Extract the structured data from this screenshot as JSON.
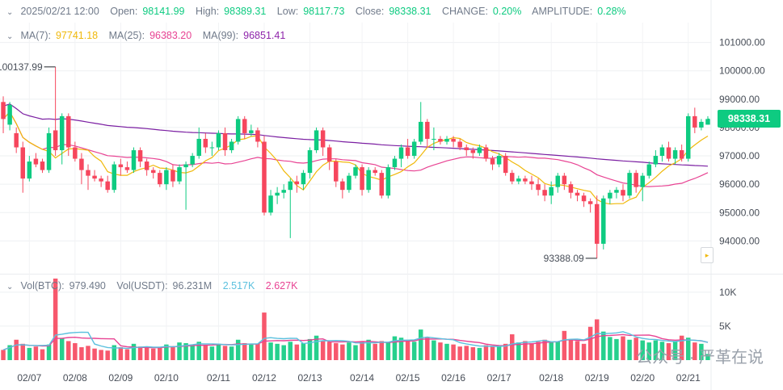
{
  "header": {
    "datetime": "2025/02/21 12:00",
    "open_label": "Open:",
    "open": "98141.99",
    "high_label": "High:",
    "high": "98389.31",
    "low_label": "Low:",
    "low": "98117.73",
    "close_label": "Close:",
    "close": "98338.31",
    "change_label": "CHANGE:",
    "change": "0.20%",
    "amplitude_label": "AMPLITUDE:",
    "amplitude": "0.28%"
  },
  "ma": {
    "ma7_label": "MA(7):",
    "ma7": "97741.18",
    "ma25_label": "MA(25):",
    "ma25": "96383.20",
    "ma99_label": "MA(99):",
    "ma99": "96851.41"
  },
  "vol": {
    "btc_label": "Vol(BTC):",
    "btc": "979.490",
    "usdt_label": "Vol(USDT):",
    "usdt": "96.231M",
    "green_val": "2.517K",
    "red_val": "2.627K"
  },
  "current_price": "98338.31",
  "high_marker": "100137.99",
  "low_marker": "93388.09",
  "watermark": "公众号 · 严革在说",
  "colors": {
    "up": "#0ecb81",
    "down": "#f6465d",
    "ma7": "#f0b90b",
    "ma25": "#e84393",
    "ma99": "#7b1fa2",
    "vol_ma1": "#e84393",
    "vol_ma2": "#5bc0de"
  },
  "chart_data": {
    "type": "candlestick",
    "price_axis": [
      "101000.00",
      "100000.00",
      "99000.00",
      "98000.00",
      "97000.00",
      "96000.00",
      "95000.00",
      "94000.00"
    ],
    "price_range": [
      93100,
      101700
    ],
    "volume_axis": [
      "10K",
      "5K"
    ],
    "volume_range": [
      0,
      12000
    ],
    "date_labels": [
      "02/07",
      "02/08",
      "02/09",
      "02/10",
      "02/11",
      "02/12",
      "02/13",
      "02/14",
      "02/15",
      "02/16",
      "02/17",
      "02/18",
      "02/19",
      "02/20",
      "02/21"
    ],
    "candles": [
      [
        98900,
        98300,
        99100,
        97800
      ],
      [
        98100,
        98800,
        98900,
        97900
      ],
      [
        97800,
        97300,
        98000,
        97100
      ],
      [
        97300,
        96200,
        97500,
        95700
      ],
      [
        96200,
        96800,
        97000,
        96100
      ],
      [
        96900,
        96700,
        97100,
        96600
      ],
      [
        96800,
        96500,
        96900,
        96400
      ],
      [
        96500,
        97800,
        98000,
        96400
      ],
      [
        97900,
        97200,
        100138,
        97000
      ],
      [
        97200,
        98400,
        98500,
        96700
      ],
      [
        98400,
        97300,
        98500,
        97000
      ],
      [
        97300,
        96900,
        97500,
        96800
      ],
      [
        96900,
        96500,
        97100,
        96000
      ],
      [
        96500,
        96300,
        96700,
        95800
      ],
      [
        96300,
        96200,
        96500,
        96100
      ],
      [
        96200,
        96100,
        96300,
        95900
      ],
      [
        96100,
        95800,
        96300,
        95700
      ],
      [
        95800,
        96700,
        96800,
        95700
      ],
      [
        96700,
        96600,
        96900,
        96300
      ],
      [
        96600,
        96500,
        96800,
        96400
      ],
      [
        96500,
        97200,
        97300,
        96400
      ],
      [
        97200,
        96800,
        97300,
        96600
      ],
      [
        96800,
        96500,
        96900,
        96300
      ],
      [
        96500,
        96400,
        96600,
        96200
      ],
      [
        96400,
        96000,
        96500,
        95900
      ],
      [
        96000,
        96500,
        96600,
        95800
      ],
      [
        96500,
        96100,
        96700,
        95900
      ],
      [
        96100,
        96600,
        96700,
        96000
      ],
      [
        96600,
        96700,
        96800,
        95100
      ],
      [
        96700,
        97000,
        97100,
        96600
      ],
      [
        97000,
        97600,
        98000,
        96900
      ],
      [
        97600,
        97300,
        97800,
        97100
      ],
      [
        97300,
        97300,
        97500,
        97000
      ],
      [
        97300,
        97800,
        97900,
        97200
      ],
      [
        97800,
        97200,
        98000,
        97000
      ],
      [
        97200,
        97500,
        97600,
        97100
      ],
      [
        97500,
        98300,
        98400,
        97400
      ],
      [
        98300,
        97800,
        98400,
        97600
      ],
      [
        97800,
        97900,
        98100,
        97700
      ],
      [
        97900,
        97500,
        98000,
        97300
      ],
      [
        97500,
        95000,
        97700,
        94900
      ],
      [
        95000,
        95600,
        95800,
        94900
      ],
      [
        95600,
        95700,
        95900,
        95300
      ],
      [
        95700,
        95800,
        96000,
        95500
      ],
      [
        95800,
        96100,
        96200,
        94100
      ],
      [
        96100,
        96000,
        96300,
        95700
      ],
      [
        96000,
        96400,
        96500,
        95800
      ],
      [
        96400,
        97200,
        97300,
        96200
      ],
      [
        97200,
        97900,
        98000,
        97100
      ],
      [
        97900,
        97300,
        98000,
        97000
      ],
      [
        97300,
        96800,
        97400,
        96500
      ],
      [
        96800,
        96100,
        96900,
        95900
      ],
      [
        96100,
        95800,
        96200,
        95500
      ],
      [
        95800,
        96300,
        96400,
        95700
      ],
      [
        96300,
        96600,
        96700,
        96200
      ],
      [
        96600,
        95800,
        96700,
        95600
      ],
      [
        95800,
        96500,
        96600,
        95700
      ],
      [
        96500,
        96400,
        96600,
        96300
      ],
      [
        96400,
        95600,
        96500,
        95500
      ],
      [
        95600,
        96600,
        96700,
        95500
      ],
      [
        96600,
        96900,
        97000,
        96500
      ],
      [
        96900,
        97300,
        97400,
        96600
      ],
      [
        97300,
        97000,
        97600,
        96900
      ],
      [
        97000,
        97500,
        97600,
        96900
      ],
      [
        97500,
        98200,
        98900,
        97400
      ],
      [
        98200,
        97600,
        98300,
        97300
      ],
      [
        97600,
        97600,
        98000,
        97200
      ],
      [
        97600,
        97500,
        97700,
        97400
      ],
      [
        97500,
        97600,
        97700,
        97400
      ],
      [
        97600,
        97500,
        97700,
        97300
      ],
      [
        97500,
        97300,
        97600,
        97200
      ],
      [
        97300,
        97200,
        97400,
        97000
      ],
      [
        97200,
        97100,
        97300,
        96900
      ],
      [
        97100,
        97300,
        97400,
        97000
      ],
      [
        97300,
        96900,
        97400,
        96800
      ],
      [
        96900,
        96700,
        97000,
        96500
      ],
      [
        96700,
        97000,
        97100,
        96600
      ],
      [
        97000,
        96400,
        97100,
        96300
      ],
      [
        96400,
        96100,
        96500,
        96000
      ],
      [
        96100,
        96200,
        96300,
        96000
      ],
      [
        96200,
        96100,
        96300,
        96000
      ],
      [
        96100,
        96000,
        96300,
        95800
      ],
      [
        96000,
        95800,
        96200,
        95600
      ],
      [
        95800,
        95600,
        96000,
        95400
      ],
      [
        95600,
        95900,
        96100,
        95300
      ],
      [
        95900,
        96300,
        96400,
        95700
      ],
      [
        96300,
        96000,
        96400,
        95800
      ],
      [
        96000,
        95700,
        96100,
        95500
      ],
      [
        95700,
        95600,
        95800,
        95400
      ],
      [
        95600,
        95400,
        95700,
        95200
      ],
      [
        95400,
        95300,
        95500,
        95000
      ],
      [
        95300,
        93900,
        95600,
        93388
      ],
      [
        93900,
        95500,
        95600,
        93700
      ],
      [
        95500,
        95700,
        95800,
        95300
      ],
      [
        95700,
        95800,
        95900,
        95500
      ],
      [
        95800,
        95600,
        96000,
        95400
      ],
      [
        95600,
        96400,
        96500,
        95500
      ],
      [
        96400,
        95900,
        96500,
        95700
      ],
      [
        95900,
        96300,
        96400,
        95400
      ],
      [
        96300,
        96700,
        96800,
        96200
      ],
      [
        96700,
        97000,
        97200,
        96600
      ],
      [
        97000,
        97300,
        97400,
        96800
      ],
      [
        97300,
        96900,
        97500,
        96800
      ],
      [
        96900,
        97200,
        97300,
        96700
      ],
      [
        97200,
        96900,
        97400,
        96800
      ],
      [
        96900,
        98400,
        98500,
        96800
      ],
      [
        98400,
        98000,
        98700,
        97800
      ],
      [
        98000,
        98200,
        98300,
        97900
      ],
      [
        98100,
        98300,
        98400,
        98100
      ]
    ],
    "volumes": [
      1500,
      2200,
      3000,
      2400,
      1800,
      2000,
      1600,
      2300,
      12000,
      3200,
      2800,
      2500,
      1900,
      2100,
      1700,
      1500,
      1400,
      2200,
      1900,
      1600,
      2400,
      2000,
      1800,
      1700,
      1900,
      2300,
      2000,
      2600,
      2500,
      2300,
      2700,
      2200,
      2000,
      2400,
      2100,
      2000,
      3000,
      2500,
      2300,
      2400,
      7000,
      2600,
      2400,
      2200,
      2700,
      2300,
      2500,
      3100,
      3600,
      2900,
      2700,
      2500,
      2300,
      2600,
      2200,
      2800,
      3000,
      2400,
      2800,
      2600,
      3500,
      3300,
      3000,
      2700,
      4500,
      3300,
      2900,
      2600,
      2400,
      2300,
      2000,
      2100,
      1900,
      1800,
      2200,
      2100,
      2000,
      2400,
      3800,
      2600,
      2800,
      2500,
      2700,
      3000,
      2600,
      2700,
      4300,
      3100,
      2800,
      2400,
      4900,
      6000,
      4200,
      3400,
      3100,
      3500,
      3000,
      3300,
      2900,
      2600,
      2900,
      2700,
      2500,
      2800,
      3600,
      3300,
      2600,
      2400,
      900
    ]
  }
}
